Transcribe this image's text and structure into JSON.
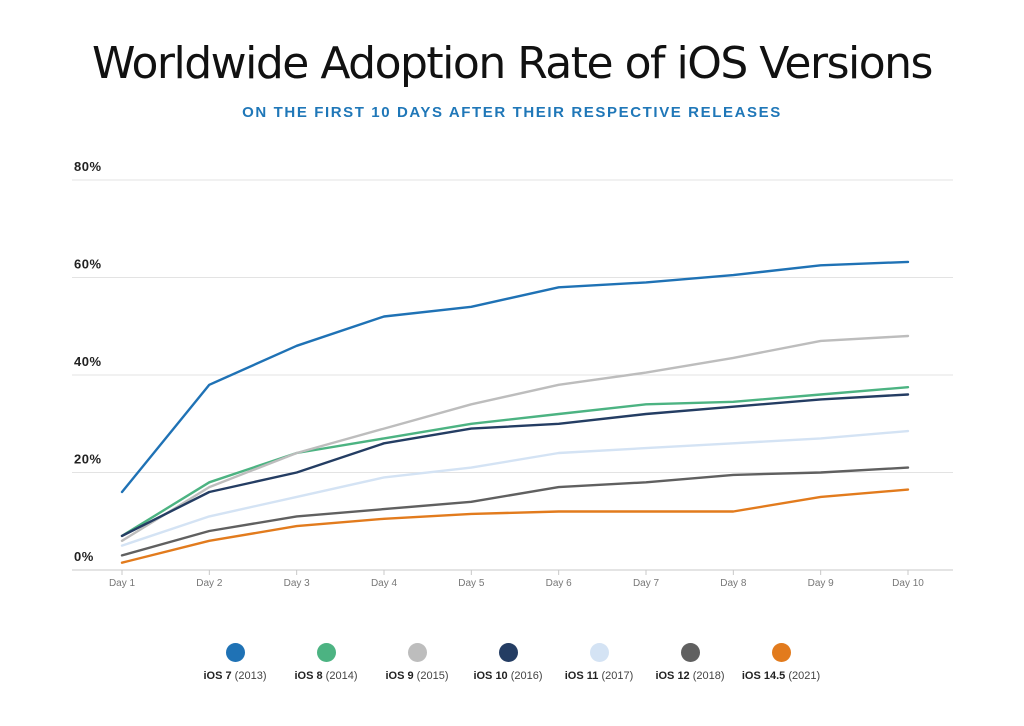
{
  "title": "Worldwide Adoption Rate of iOS Versions",
  "subtitle": "ON THE FIRST 10 DAYS AFTER THEIR RESPECTIVE RELEASES",
  "chart_data": {
    "type": "line",
    "title": "Worldwide Adoption Rate of iOS Versions",
    "subtitle": "ON THE FIRST 10 DAYS AFTER THEIR RESPECTIVE RELEASES",
    "xlabel": "",
    "ylabel": "",
    "categories": [
      "Day 1",
      "Day 2",
      "Day 3",
      "Day 4",
      "Day 5",
      "Day 6",
      "Day 7",
      "Day 8",
      "Day 9",
      "Day 10"
    ],
    "yticks": [
      0,
      20,
      40,
      60,
      80
    ],
    "ytick_labels": [
      "0%",
      "20%",
      "40%",
      "60%",
      "80%"
    ],
    "ylim": [
      0,
      80
    ],
    "grid": true,
    "legend_position": "bottom",
    "series": [
      {
        "name": "iOS 7",
        "year": "(2013)",
        "color": "#1f72b5",
        "values": [
          16,
          38,
          46,
          52,
          54,
          58,
          59,
          60.5,
          62.5,
          63.2
        ]
      },
      {
        "name": "iOS 8",
        "year": "(2014)",
        "color": "#4cb382",
        "values": [
          7,
          18,
          24,
          27,
          30,
          32,
          34,
          34.5,
          36,
          37.5
        ]
      },
      {
        "name": "iOS 9",
        "year": "(2015)",
        "color": "#bdbdbd",
        "values": [
          6,
          17,
          24,
          29,
          34,
          38,
          40.5,
          43.5,
          47,
          48
        ]
      },
      {
        "name": "iOS 10",
        "year": "(2016)",
        "color": "#243d63",
        "values": [
          7,
          16,
          20,
          26,
          29,
          30,
          32,
          33.5,
          35,
          36
        ]
      },
      {
        "name": "iOS 11",
        "year": "(2017)",
        "color": "#d4e3f4",
        "values": [
          5,
          11,
          15,
          19,
          21,
          24,
          25,
          26,
          27,
          28.5
        ]
      },
      {
        "name": "iOS 12",
        "year": "(2018)",
        "color": "#606060",
        "values": [
          3,
          8,
          11,
          12.5,
          14,
          17,
          18,
          19.5,
          20,
          21
        ]
      },
      {
        "name": "iOS 14.5",
        "year": "(2021)",
        "color": "#e27b1d",
        "values": [
          1.5,
          6,
          9,
          10.5,
          11.5,
          12,
          12,
          12,
          15,
          16.5
        ]
      }
    ]
  }
}
